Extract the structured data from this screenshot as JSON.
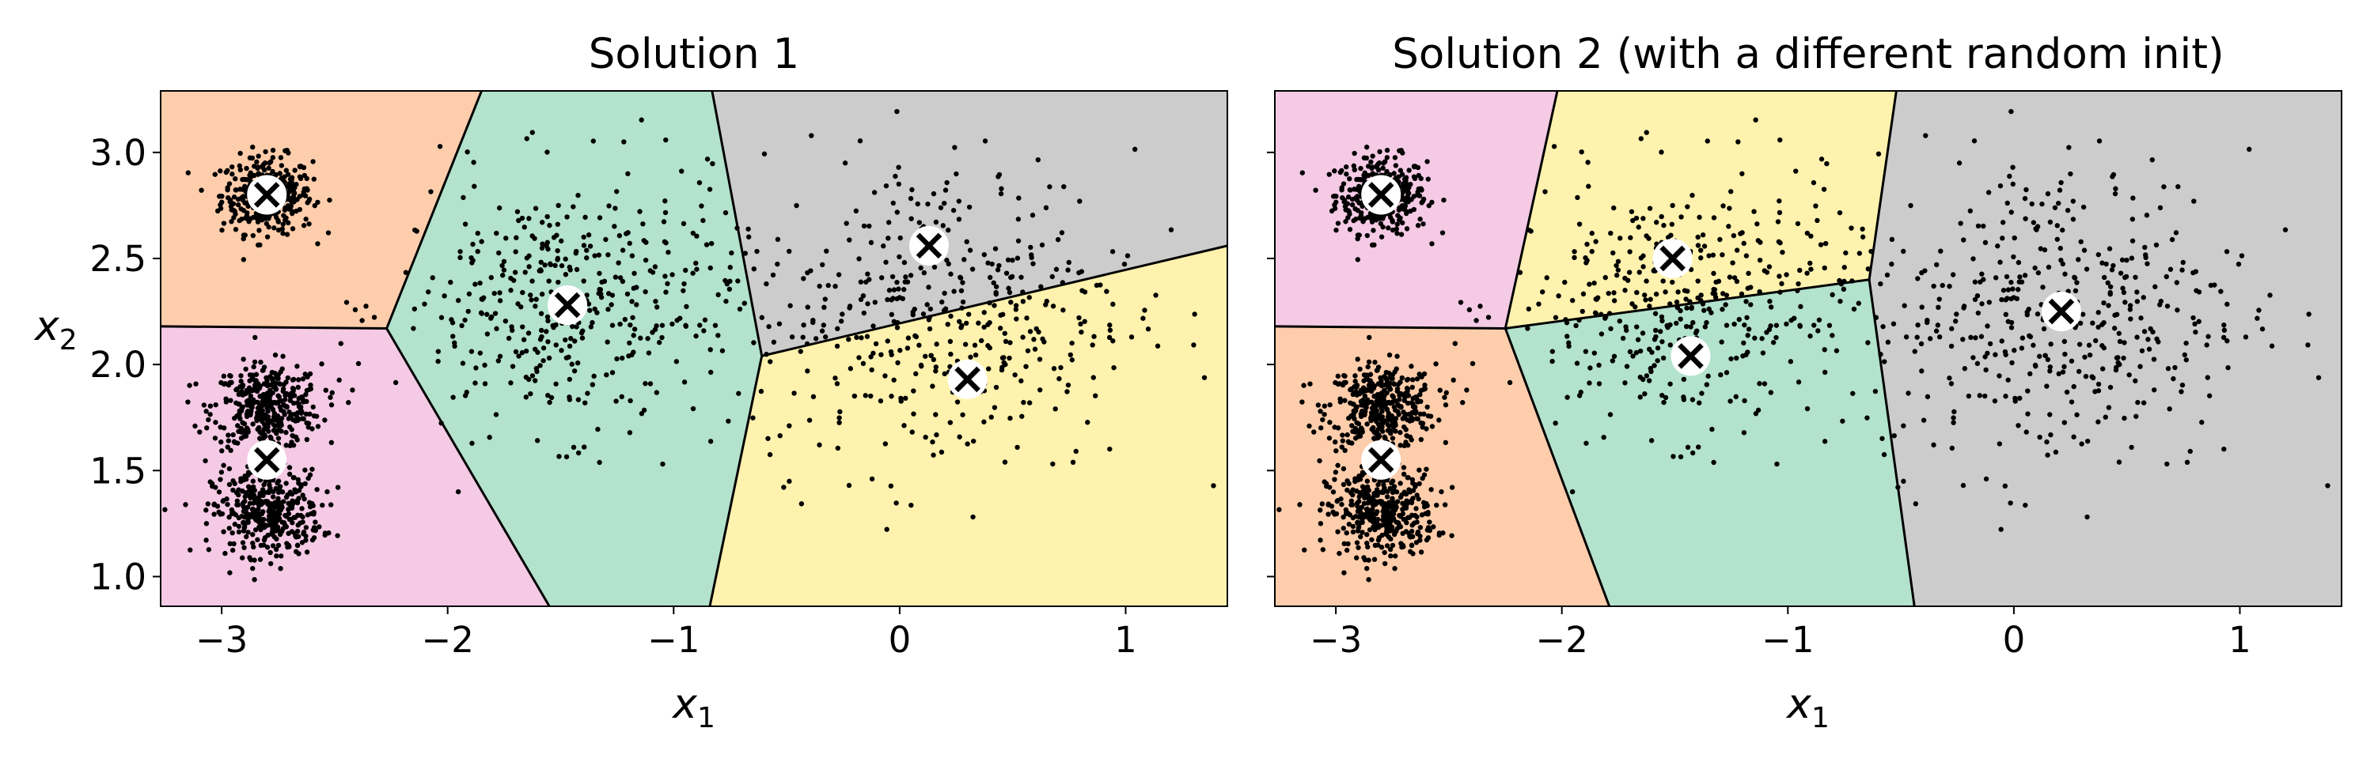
{
  "chart_data": [
    {
      "type": "scatter",
      "title": "Solution 1",
      "xlabel": "x",
      "xlabel_sub": "1",
      "ylabel": "x",
      "ylabel_sub": "2",
      "xlim": [
        -3.27,
        1.45
      ],
      "ylim": [
        0.86,
        3.29
      ],
      "xticks": [
        -3,
        -2,
        -1,
        0,
        1
      ],
      "xtick_labels": [
        "−3",
        "−2",
        "−1",
        "0",
        "1"
      ],
      "yticks": [
        1.0,
        1.5,
        2.0,
        2.5,
        3.0
      ],
      "ytick_labels": [
        "1.0",
        "1.5",
        "2.0",
        "2.5",
        "3.0"
      ],
      "regions": [
        {
          "color": "#fdcdac",
          "vertices": [
            [
              -3.27,
              3.29
            ],
            [
              -1.85,
              3.29
            ],
            [
              -2.27,
              2.17
            ],
            [
              -3.27,
              2.18
            ]
          ]
        },
        {
          "color": "#f4cae4",
          "vertices": [
            [
              -3.27,
              2.18
            ],
            [
              -2.27,
              2.17
            ],
            [
              -1.55,
              0.86
            ],
            [
              -3.27,
              0.86
            ]
          ]
        },
        {
          "color": "#b3e2cd",
          "vertices": [
            [
              -1.85,
              3.29
            ],
            [
              -0.83,
              3.29
            ],
            [
              -0.61,
              2.04
            ],
            [
              -0.84,
              0.86
            ],
            [
              -1.55,
              0.86
            ],
            [
              -2.27,
              2.17
            ]
          ]
        },
        {
          "color": "#cccccc",
          "vertices": [
            [
              -0.83,
              3.29
            ],
            [
              1.45,
              3.29
            ],
            [
              1.45,
              2.56
            ],
            [
              -0.61,
              2.04
            ]
          ]
        },
        {
          "color": "#fff2ae",
          "vertices": [
            [
              -0.61,
              2.04
            ],
            [
              1.45,
              2.56
            ],
            [
              1.45,
              0.86
            ],
            [
              -0.84,
              0.86
            ]
          ]
        }
      ],
      "boundaries": [
        [
          [
            -1.85,
            3.29
          ],
          [
            -2.27,
            2.17
          ]
        ],
        [
          [
            -3.27,
            2.18
          ],
          [
            -2.27,
            2.17
          ]
        ],
        [
          [
            -2.27,
            2.17
          ],
          [
            -1.55,
            0.86
          ]
        ],
        [
          [
            -0.83,
            3.29
          ],
          [
            -0.61,
            2.04
          ]
        ],
        [
          [
            -0.61,
            2.04
          ],
          [
            -0.84,
            0.86
          ]
        ],
        [
          [
            -0.61,
            2.04
          ],
          [
            1.45,
            2.56
          ]
        ]
      ],
      "centroids": [
        {
          "x": -2.8,
          "y": 2.8
        },
        {
          "x": -2.8,
          "y": 1.55
        },
        {
          "x": -1.47,
          "y": 2.28
        },
        {
          "x": 0.13,
          "y": 2.56
        },
        {
          "x": 0.3,
          "y": 1.93
        }
      ]
    },
    {
      "type": "scatter",
      "title": "Solution 2 (with a different random init)",
      "xlabel": "x",
      "xlabel_sub": "1",
      "xlim": [
        -3.27,
        1.45
      ],
      "ylim": [
        0.86,
        3.29
      ],
      "xticks": [
        -3,
        -2,
        -1,
        0,
        1
      ],
      "xtick_labels": [
        "−3",
        "−2",
        "−1",
        "0",
        "1"
      ],
      "yticks": [
        1.0,
        1.5,
        2.0,
        2.5,
        3.0
      ],
      "regions": [
        {
          "color": "#f4cae4",
          "vertices": [
            [
              -3.27,
              3.29
            ],
            [
              -2.02,
              3.29
            ],
            [
              -2.25,
              2.17
            ],
            [
              -3.27,
              2.18
            ]
          ]
        },
        {
          "color": "#fdcdac",
          "vertices": [
            [
              -3.27,
              2.18
            ],
            [
              -2.25,
              2.17
            ],
            [
              -1.79,
              0.86
            ],
            [
              -3.27,
              0.86
            ]
          ]
        },
        {
          "color": "#fff2ae",
          "vertices": [
            [
              -2.02,
              3.29
            ],
            [
              -0.52,
              3.29
            ],
            [
              -0.64,
              2.4
            ],
            [
              -2.25,
              2.17
            ]
          ]
        },
        {
          "color": "#b3e2cd",
          "vertices": [
            [
              -2.25,
              2.17
            ],
            [
              -0.64,
              2.4
            ],
            [
              -0.44,
              0.86
            ],
            [
              -1.79,
              0.86
            ]
          ]
        },
        {
          "color": "#cccccc",
          "vertices": [
            [
              -0.52,
              3.29
            ],
            [
              1.45,
              3.29
            ],
            [
              1.45,
              0.86
            ],
            [
              -0.44,
              0.86
            ],
            [
              -0.64,
              2.4
            ]
          ]
        }
      ],
      "boundaries": [
        [
          [
            -2.02,
            3.29
          ],
          [
            -2.25,
            2.17
          ]
        ],
        [
          [
            -3.27,
            2.18
          ],
          [
            -2.25,
            2.17
          ]
        ],
        [
          [
            -2.25,
            2.17
          ],
          [
            -1.79,
            0.86
          ]
        ],
        [
          [
            -2.25,
            2.17
          ],
          [
            -0.64,
            2.4
          ]
        ],
        [
          [
            -0.52,
            3.29
          ],
          [
            -0.64,
            2.4
          ]
        ],
        [
          [
            -0.64,
            2.4
          ],
          [
            -0.44,
            0.86
          ]
        ]
      ],
      "centroids": [
        {
          "x": -2.8,
          "y": 2.8
        },
        {
          "x": -2.8,
          "y": 1.55
        },
        {
          "x": -1.51,
          "y": 2.5
        },
        {
          "x": -1.43,
          "y": 2.04
        },
        {
          "x": 0.21,
          "y": 2.25
        }
      ]
    }
  ],
  "point_clusters": [
    {
      "cx": -2.8,
      "cy": 2.8,
      "sx": 0.1,
      "sy": 0.09,
      "n": 360
    },
    {
      "cx": -2.8,
      "cy": 1.8,
      "sx": 0.12,
      "sy": 0.1,
      "n": 380
    },
    {
      "cx": -2.8,
      "cy": 1.3,
      "sx": 0.12,
      "sy": 0.1,
      "n": 380
    },
    {
      "cx": -1.47,
      "cy": 2.28,
      "sx": 0.38,
      "sy": 0.3,
      "n": 420
    },
    {
      "cx": 0.2,
      "cy": 2.25,
      "sx": 0.42,
      "sy": 0.38,
      "n": 430
    }
  ]
}
